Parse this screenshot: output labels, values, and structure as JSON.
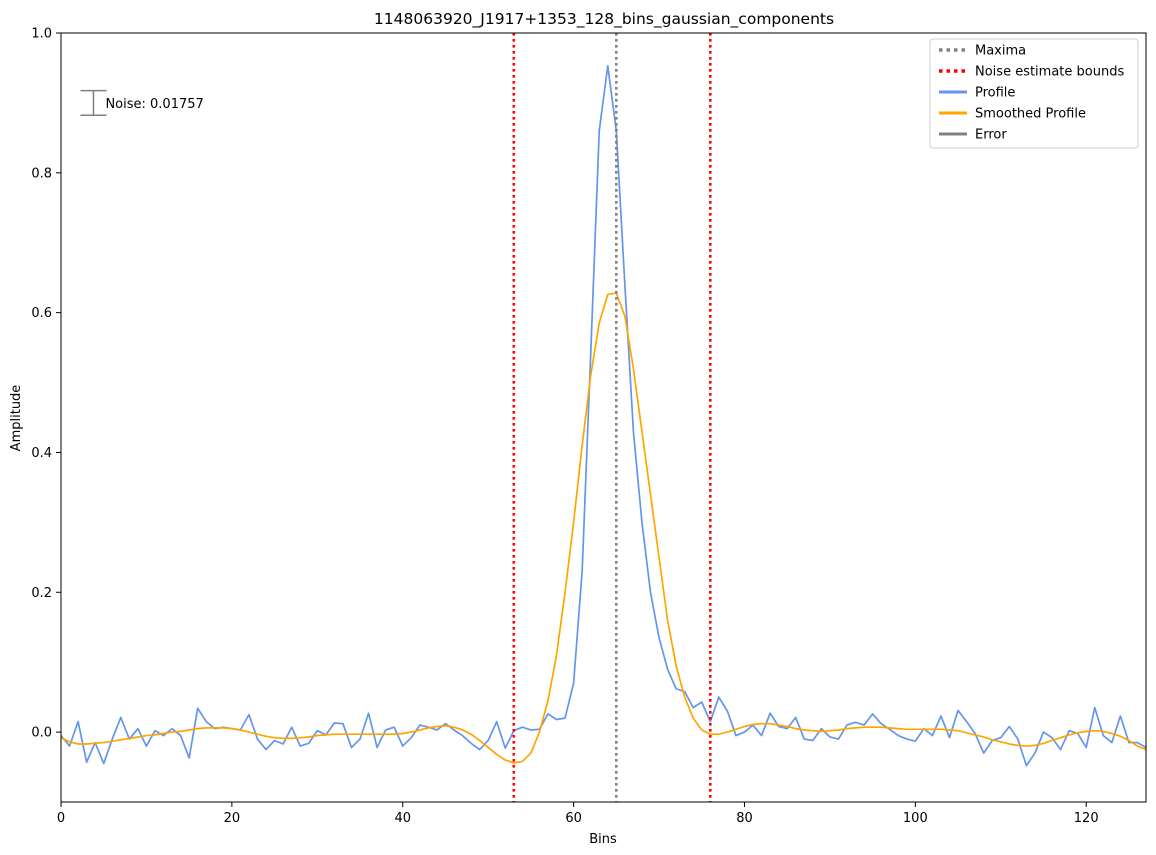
{
  "chart_data": {
    "type": "line",
    "title": "1148063920_J1917+1353_128_bins_gaussian_components",
    "xlabel": "Bins",
    "ylabel": "Amplitude",
    "xlim": [
      0,
      127
    ],
    "ylim": [
      -0.1,
      1.0
    ],
    "xticks": [
      0,
      20,
      40,
      60,
      80,
      100,
      120
    ],
    "yticks": [
      0.0,
      0.2,
      0.4,
      0.6,
      0.8,
      1.0
    ],
    "xtick_labels": [
      "0",
      "20",
      "40",
      "60",
      "80",
      "100",
      "120"
    ],
    "ytick_labels": [
      "0.0",
      "0.2",
      "0.4",
      "0.6",
      "0.8",
      "1.0"
    ],
    "grid": false,
    "legend_position": "top-right",
    "series": [
      {
        "name": "Profile",
        "color": "#6495ed",
        "x": [
          0,
          1,
          2,
          3,
          4,
          5,
          6,
          7,
          8,
          9,
          10,
          11,
          12,
          13,
          14,
          15,
          16,
          17,
          18,
          19,
          20,
          21,
          22,
          23,
          24,
          25,
          26,
          27,
          28,
          29,
          30,
          31,
          32,
          33,
          34,
          35,
          36,
          37,
          38,
          39,
          40,
          41,
          42,
          43,
          44,
          45,
          46,
          47,
          48,
          49,
          50,
          51,
          52,
          53,
          54,
          55,
          56,
          57,
          58,
          59,
          60,
          61,
          62,
          63,
          64,
          65,
          66,
          67,
          68,
          69,
          70,
          71,
          72,
          73,
          74,
          75,
          76,
          77,
          78,
          79,
          80,
          81,
          82,
          83,
          84,
          85,
          86,
          87,
          88,
          89,
          90,
          91,
          92,
          93,
          94,
          95,
          96,
          97,
          98,
          99,
          100,
          101,
          102,
          103,
          104,
          105,
          106,
          107,
          108,
          109,
          110,
          111,
          112,
          113,
          114,
          115,
          116,
          117,
          118,
          119,
          120,
          121,
          122,
          123,
          124,
          125,
          126,
          127
        ],
        "y": [
          -0.005,
          -0.02,
          0.015,
          -0.043,
          -0.015,
          -0.045,
          -0.01,
          0.021,
          -0.01,
          0.005,
          -0.02,
          0.002,
          -0.005,
          0.005,
          -0.005,
          -0.037,
          0.034,
          0.015,
          0.005,
          0.007,
          0.005,
          0.003,
          0.025,
          -0.01,
          -0.025,
          -0.012,
          -0.017,
          0.007,
          -0.02,
          -0.016,
          0.002,
          -0.004,
          0.013,
          0.012,
          -0.022,
          -0.01,
          0.027,
          -0.022,
          0.003,
          0.007,
          -0.02,
          -0.008,
          0.01,
          0.007,
          0.003,
          0.012,
          0.003,
          -0.005,
          -0.016,
          -0.025,
          -0.012,
          0.015,
          -0.023,
          0.002,
          0.007,
          0.003,
          0.004,
          0.026,
          0.018,
          0.02,
          0.07,
          0.23,
          0.54,
          0.86,
          0.953,
          0.86,
          0.64,
          0.43,
          0.3,
          0.2,
          0.135,
          0.09,
          0.062,
          0.058,
          0.035,
          0.043,
          0.015,
          0.05,
          0.03,
          -0.005,
          0.0,
          0.01,
          -0.005,
          0.027,
          0.008,
          0.005,
          0.021,
          -0.01,
          -0.012,
          0.005,
          -0.007,
          -0.01,
          0.01,
          0.014,
          0.01,
          0.026,
          0.012,
          0.004,
          -0.005,
          -0.01,
          -0.013,
          0.005,
          -0.005,
          0.023,
          -0.008,
          0.031,
          0.015,
          -0.002,
          -0.03,
          -0.012,
          -0.008,
          0.008,
          -0.01,
          -0.048,
          -0.03,
          0.0,
          -0.008,
          -0.025,
          0.002,
          -0.002,
          -0.022,
          0.035,
          -0.005,
          -0.015,
          0.023,
          -0.015,
          -0.015,
          -0.022
        ]
      },
      {
        "name": "Smoothed Profile",
        "color": "#ffa500",
        "x": [
          0,
          1,
          2,
          3,
          4,
          5,
          6,
          7,
          8,
          9,
          10,
          11,
          12,
          13,
          14,
          15,
          16,
          17,
          18,
          19,
          20,
          21,
          22,
          23,
          24,
          25,
          26,
          27,
          28,
          29,
          30,
          31,
          32,
          33,
          34,
          35,
          36,
          37,
          38,
          39,
          40,
          41,
          42,
          43,
          44,
          45,
          46,
          47,
          48,
          49,
          50,
          51,
          52,
          53,
          54,
          55,
          56,
          57,
          58,
          59,
          60,
          61,
          62,
          63,
          64,
          65,
          66,
          67,
          68,
          69,
          70,
          71,
          72,
          73,
          74,
          75,
          76,
          77,
          78,
          79,
          80,
          81,
          82,
          83,
          84,
          85,
          86,
          87,
          88,
          89,
          90,
          91,
          92,
          93,
          94,
          95,
          96,
          97,
          98,
          99,
          100,
          101,
          102,
          103,
          104,
          105,
          106,
          107,
          108,
          109,
          110,
          111,
          112,
          113,
          114,
          115,
          116,
          117,
          118,
          119,
          120,
          121,
          122,
          123,
          124,
          125,
          126,
          127
        ],
        "y": [
          -0.008,
          -0.014,
          -0.017,
          -0.017,
          -0.016,
          -0.015,
          -0.013,
          -0.011,
          -0.009,
          -0.007,
          -0.005,
          -0.004,
          -0.002,
          0.0,
          0.001,
          0.003,
          0.005,
          0.006,
          0.006,
          0.006,
          0.005,
          0.003,
          0.0,
          -0.003,
          -0.006,
          -0.008,
          -0.009,
          -0.009,
          -0.008,
          -0.007,
          -0.005,
          -0.004,
          -0.003,
          -0.003,
          -0.003,
          -0.003,
          -0.003,
          -0.003,
          -0.003,
          -0.003,
          -0.002,
          0.0,
          0.003,
          0.006,
          0.008,
          0.009,
          0.007,
          0.003,
          -0.003,
          -0.012,
          -0.022,
          -0.032,
          -0.04,
          -0.044,
          -0.042,
          -0.03,
          0.0,
          0.045,
          0.11,
          0.2,
          0.3,
          0.41,
          0.51,
          0.585,
          0.626,
          0.628,
          0.595,
          0.52,
          0.43,
          0.34,
          0.25,
          0.16,
          0.095,
          0.05,
          0.02,
          0.003,
          -0.003,
          -0.003,
          0.0,
          0.004,
          0.008,
          0.011,
          0.012,
          0.012,
          0.01,
          0.008,
          0.005,
          0.003,
          0.002,
          0.001,
          0.002,
          0.003,
          0.005,
          0.006,
          0.007,
          0.007,
          0.007,
          0.006,
          0.005,
          0.004,
          0.004,
          0.004,
          0.004,
          0.004,
          0.003,
          0.002,
          -0.001,
          -0.004,
          -0.007,
          -0.011,
          -0.014,
          -0.017,
          -0.019,
          -0.02,
          -0.019,
          -0.016,
          -0.012,
          -0.008,
          -0.004,
          -0.001,
          0.001,
          0.002,
          0.001,
          -0.002,
          -0.006,
          -0.012,
          -0.02,
          -0.025
        ]
      }
    ],
    "vlines": [
      {
        "name": "Maxima",
        "x": 65,
        "color": "#808080",
        "style": "dotted"
      },
      {
        "name": "Noise estimate bounds",
        "x": 53,
        "color": "#ff0000",
        "style": "dotted"
      },
      {
        "name": "Noise estimate bounds",
        "x": 76,
        "color": "#ff0000",
        "style": "dotted"
      }
    ],
    "error_bar": {
      "name": "Error",
      "x": 3.8,
      "y": 0.9,
      "half_height": 0.01757,
      "color": "#808080",
      "label": "Noise: 0.01757"
    },
    "legend": [
      {
        "label": "Maxima",
        "color": "#808080",
        "style": "dotted"
      },
      {
        "label": "Noise estimate bounds",
        "color": "#ff0000",
        "style": "dotted"
      },
      {
        "label": "Profile",
        "color": "#6495ed",
        "style": "solid"
      },
      {
        "label": "Smoothed Profile",
        "color": "#ffa500",
        "style": "solid"
      },
      {
        "label": "Error",
        "color": "#808080",
        "style": "solid"
      }
    ]
  }
}
